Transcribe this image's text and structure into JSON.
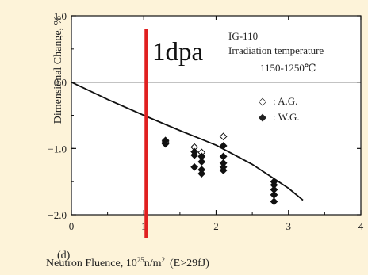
{
  "chart_data": {
    "type": "scatter",
    "title": "",
    "panel_label": "(d)",
    "xlabel": "Neutron Fluence, 10",
    "xlabel_exp": "25",
    "xlabel_unit": "n/m",
    "xlabel_unit_exp": "2",
    "xlabel_suffix": "(E>29fJ)",
    "ylabel": "Dimensional Change, %",
    "xlim": [
      0,
      4
    ],
    "ylim": [
      -2.0,
      1.0
    ],
    "x_ticks": [
      0,
      1,
      2,
      3,
      4
    ],
    "x_tick_labels": [
      "0",
      "1",
      "2",
      "3",
      "4"
    ],
    "y_ticks": [
      1.0,
      0.0,
      -1.0,
      -2.0
    ],
    "y_tick_labels": [
      "1.0",
      "0.0",
      "−1.0",
      "−2.0"
    ],
    "zero_line": 0.0,
    "annotation_title": "IG-110",
    "annotation_line1": "Irradiation temperature",
    "annotation_line2": "1150-1250℃",
    "legend": [
      {
        "marker": "◇",
        "label": ": A.G."
      },
      {
        "marker": "◆",
        "label": ": W.G."
      }
    ],
    "series": [
      {
        "name": "A.G.",
        "marker": "open-diamond",
        "x": [
          1.3,
          1.7,
          1.8,
          2.1
        ],
        "y": [
          -0.9,
          -0.98,
          -1.06,
          -0.82
        ]
      },
      {
        "name": "W.G.",
        "marker": "filled-diamond",
        "x": [
          1.3,
          1.3,
          1.7,
          1.7,
          1.7,
          1.8,
          1.8,
          1.8,
          1.8,
          2.1,
          2.1,
          2.1,
          2.1,
          2.1,
          2.8,
          2.8,
          2.8,
          2.8,
          2.8
        ],
        "y": [
          -0.88,
          -0.93,
          -1.05,
          -1.1,
          -1.28,
          -1.12,
          -1.2,
          -1.32,
          -1.38,
          -0.96,
          -1.12,
          -1.22,
          -1.28,
          -1.33,
          -1.5,
          -1.55,
          -1.62,
          -1.7,
          -1.8
        ]
      }
    ],
    "trend_line": {
      "x": [
        0,
        0.5,
        1.0,
        1.5,
        2.0,
        2.5,
        3.0,
        3.2
      ],
      "y": [
        0.0,
        -0.26,
        -0.5,
        -0.73,
        -0.95,
        -1.24,
        -1.6,
        -1.78
      ]
    },
    "vertical_marker": {
      "x": 1.0,
      "label": "1dpa",
      "color": "#e02020"
    }
  }
}
